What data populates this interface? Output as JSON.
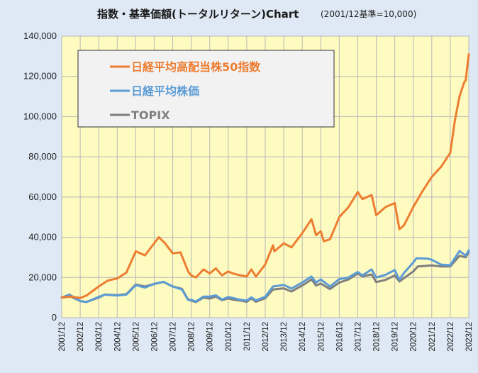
{
  "chart_data": {
    "type": "line",
    "title": "指数・基準価額(トータルリターン)Chart",
    "subtitle": "(2001/12基準=10,000)",
    "xlabel": "",
    "ylabel": "",
    "ylim": [
      0,
      140000
    ],
    "xlim": [
      2001.917,
      2023.917
    ],
    "yticks": [
      "0",
      "20,000",
      "40,000",
      "60,000",
      "80,000",
      "100,000",
      "120,000",
      "140,000"
    ],
    "xticks": [
      "2001/12",
      "2002/12",
      "2003/12",
      "2004/12",
      "2005/12",
      "2006/12",
      "2007/12",
      "2008/12",
      "2009/12",
      "2010/12",
      "2011/12",
      "2012/12",
      "2013/12",
      "2014/12",
      "2015/12",
      "2016/12",
      "2017/12",
      "2018/12",
      "2019/12",
      "2020/12",
      "2021/12",
      "2022/12",
      "2023/12"
    ],
    "grid": true,
    "legend_position": "top-left",
    "colors": {
      "page_background": "#dfe9f5",
      "plot_background": "#fdfbc0",
      "grid": "#b8b8b8",
      "legend_background": "#f2f2f2"
    },
    "series": [
      {
        "name": "日経平均高配当株50指数",
        "color": "#ed7d31",
        "points": [
          [
            "2001-12",
            10000
          ],
          [
            "2002-06",
            10500
          ],
          [
            "2002-12",
            9800
          ],
          [
            "2003-04",
            11000
          ],
          [
            "2003-12",
            15500
          ],
          [
            "2004-06",
            18500
          ],
          [
            "2004-12",
            19500
          ],
          [
            "2005-06",
            22500
          ],
          [
            "2005-12",
            33000
          ],
          [
            "2006-06",
            31000
          ],
          [
            "2006-12",
            37000
          ],
          [
            "2007-03",
            40000
          ],
          [
            "2007-07",
            37000
          ],
          [
            "2007-12",
            32000
          ],
          [
            "2008-05",
            32500
          ],
          [
            "2008-10",
            23000
          ],
          [
            "2008-12",
            21000
          ],
          [
            "2009-03",
            20000
          ],
          [
            "2009-08",
            24000
          ],
          [
            "2009-12",
            22000
          ],
          [
            "2010-04",
            24500
          ],
          [
            "2010-08",
            21000
          ],
          [
            "2010-12",
            23000
          ],
          [
            "2011-03",
            22000
          ],
          [
            "2011-08",
            21000
          ],
          [
            "2011-12",
            20500
          ],
          [
            "2012-03",
            24000
          ],
          [
            "2012-06",
            20500
          ],
          [
            "2012-12",
            26500
          ],
          [
            "2013-05",
            36000
          ],
          [
            "2013-06",
            33000
          ],
          [
            "2013-12",
            37000
          ],
          [
            "2014-05",
            35000
          ],
          [
            "2014-12",
            42000
          ],
          [
            "2015-06",
            49000
          ],
          [
            "2015-09",
            41000
          ],
          [
            "2015-12",
            43000
          ],
          [
            "2016-02",
            38000
          ],
          [
            "2016-06",
            39000
          ],
          [
            "2016-12",
            50000
          ],
          [
            "2017-06",
            55000
          ],
          [
            "2017-12",
            62500
          ],
          [
            "2018-03",
            59000
          ],
          [
            "2018-09",
            61000
          ],
          [
            "2018-12",
            51000
          ],
          [
            "2019-06",
            55000
          ],
          [
            "2019-12",
            57000
          ],
          [
            "2020-03",
            44000
          ],
          [
            "2020-06",
            46000
          ],
          [
            "2020-12",
            55000
          ],
          [
            "2021-06",
            63000
          ],
          [
            "2021-12",
            70000
          ],
          [
            "2022-06",
            75000
          ],
          [
            "2022-12",
            82000
          ],
          [
            "2023-03",
            98000
          ],
          [
            "2023-06",
            110000
          ],
          [
            "2023-09",
            117000
          ],
          [
            "2023-10",
            118000
          ],
          [
            "2023-12",
            131000
          ]
        ]
      },
      {
        "name": "日経平均株価",
        "color": "#5b9bd5",
        "points": [
          [
            "2001-12",
            10000
          ],
          [
            "2002-05",
            11500
          ],
          [
            "2002-12",
            8200
          ],
          [
            "2003-04",
            7800
          ],
          [
            "2003-12",
            10300
          ],
          [
            "2004-04",
            11500
          ],
          [
            "2004-12",
            11000
          ],
          [
            "2005-06",
            11500
          ],
          [
            "2005-12",
            16200
          ],
          [
            "2006-06",
            15000
          ],
          [
            "2006-12",
            16800
          ],
          [
            "2007-06",
            17800
          ],
          [
            "2007-12",
            15500
          ],
          [
            "2008-06",
            14000
          ],
          [
            "2008-10",
            8800
          ],
          [
            "2008-12",
            8900
          ],
          [
            "2009-03",
            8000
          ],
          [
            "2009-08",
            10500
          ],
          [
            "2009-12",
            10500
          ],
          [
            "2010-04",
            11100
          ],
          [
            "2010-08",
            9000
          ],
          [
            "2010-12",
            10300
          ],
          [
            "2011-03",
            9800
          ],
          [
            "2011-08",
            8900
          ],
          [
            "2011-12",
            8500
          ],
          [
            "2012-03",
            10100
          ],
          [
            "2012-06",
            8600
          ],
          [
            "2012-12",
            10400
          ],
          [
            "2013-05",
            15500
          ],
          [
            "2013-12",
            16300
          ],
          [
            "2014-05",
            14500
          ],
          [
            "2014-12",
            17500
          ],
          [
            "2015-06",
            20500
          ],
          [
            "2015-09",
            17500
          ],
          [
            "2015-12",
            19000
          ],
          [
            "2016-06",
            15500
          ],
          [
            "2016-12",
            19200
          ],
          [
            "2017-06",
            20000
          ],
          [
            "2017-12",
            22700
          ],
          [
            "2018-03",
            21000
          ],
          [
            "2018-09",
            24000
          ],
          [
            "2018-12",
            20000
          ],
          [
            "2019-06",
            21300
          ],
          [
            "2019-12",
            23700
          ],
          [
            "2020-03",
            18900
          ],
          [
            "2020-06",
            22300
          ],
          [
            "2020-12",
            27400
          ],
          [
            "2021-02",
            29500
          ],
          [
            "2021-09",
            29400
          ],
          [
            "2021-12",
            28800
          ],
          [
            "2022-06",
            26400
          ],
          [
            "2022-12",
            26100
          ],
          [
            "2023-06",
            33200
          ],
          [
            "2023-10",
            30900
          ],
          [
            "2023-12",
            33500
          ]
        ]
      },
      {
        "name": "TOPIX",
        "color": "#7f7f7f",
        "points": [
          [
            "2001-12",
            10000
          ],
          [
            "2002-05",
            10800
          ],
          [
            "2002-12",
            8300
          ],
          [
            "2003-04",
            7800
          ],
          [
            "2003-12",
            10000
          ],
          [
            "2004-04",
            11500
          ],
          [
            "2004-12",
            11200
          ],
          [
            "2005-06",
            11700
          ],
          [
            "2005-12",
            16500
          ],
          [
            "2006-06",
            15500
          ],
          [
            "2006-12",
            16800
          ],
          [
            "2007-06",
            17800
          ],
          [
            "2007-12",
            15500
          ],
          [
            "2008-06",
            14300
          ],
          [
            "2008-10",
            9000
          ],
          [
            "2008-12",
            8500
          ],
          [
            "2009-03",
            7800
          ],
          [
            "2009-08",
            10000
          ],
          [
            "2009-12",
            9500
          ],
          [
            "2010-04",
            10500
          ],
          [
            "2010-08",
            8700
          ],
          [
            "2010-12",
            9600
          ],
          [
            "2011-03",
            9000
          ],
          [
            "2011-08",
            8500
          ],
          [
            "2011-12",
            7900
          ],
          [
            "2012-03",
            9600
          ],
          [
            "2012-06",
            7900
          ],
          [
            "2012-12",
            9700
          ],
          [
            "2013-05",
            14000
          ],
          [
            "2013-12",
            14600
          ],
          [
            "2014-05",
            13000
          ],
          [
            "2014-12",
            16000
          ],
          [
            "2015-06",
            19000
          ],
          [
            "2015-09",
            16000
          ],
          [
            "2015-12",
            17000
          ],
          [
            "2016-06",
            14200
          ],
          [
            "2016-12",
            17500
          ],
          [
            "2017-06",
            19000
          ],
          [
            "2017-12",
            22000
          ],
          [
            "2018-03",
            20500
          ],
          [
            "2018-09",
            21500
          ],
          [
            "2018-12",
            17700
          ],
          [
            "2019-06",
            18800
          ],
          [
            "2019-12",
            21000
          ],
          [
            "2020-03",
            18000
          ],
          [
            "2020-06",
            19700
          ],
          [
            "2020-12",
            23000
          ],
          [
            "2021-03",
            25500
          ],
          [
            "2021-12",
            26000
          ],
          [
            "2022-06",
            25500
          ],
          [
            "2022-12",
            25500
          ],
          [
            "2023-06",
            30800
          ],
          [
            "2023-10",
            30000
          ],
          [
            "2023-12",
            32500
          ]
        ]
      }
    ]
  }
}
